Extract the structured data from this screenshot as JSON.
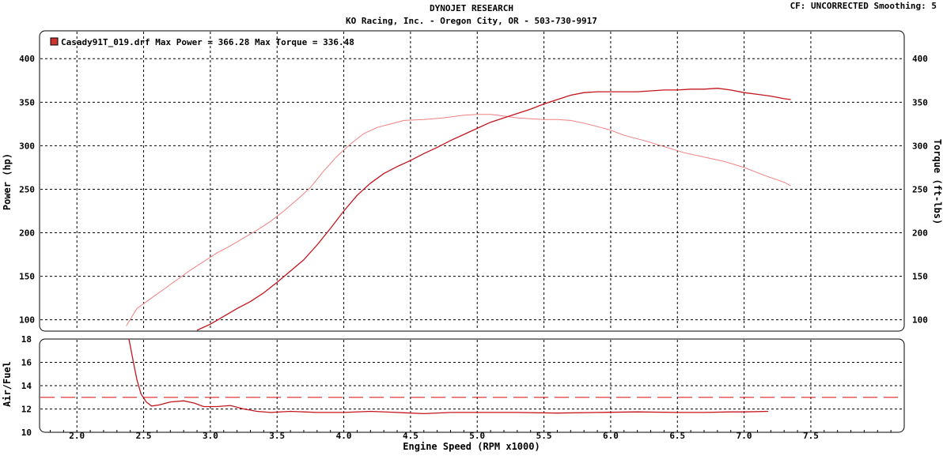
{
  "header": {
    "title": "DYNOJET RESEARCH",
    "subtitle": "KO Racing, Inc. - Oregon City, OR - 503-730-9917",
    "correction": "CF: UNCORRECTED  Smoothing: 5"
  },
  "legend": {
    "text": "Casady91T_019.drf Max Power = 366.28    Max Torque = 336.48",
    "swatch_color": "#cc3333"
  },
  "colors": {
    "power": "#c4141c",
    "torque": "#f08080",
    "afr": "#c4141c",
    "afr_target": "#dd2222",
    "grid": "#000000"
  },
  "chart_data": [
    {
      "type": "line",
      "xlabel": "",
      "ylabel": "Power (hp)",
      "y2label": "Torque (ft-lbs)",
      "xlim": [
        1.72,
        8.2
      ],
      "ylim": [
        87,
        432
      ],
      "y2lim": [
        87,
        432
      ],
      "xticks": [
        2.0,
        2.5,
        3.0,
        3.5,
        4.0,
        4.5,
        5.0,
        5.5,
        6.0,
        6.5,
        7.0,
        7.5
      ],
      "yticks": [
        100,
        150,
        200,
        250,
        300,
        350,
        400
      ],
      "y2ticks": [
        100,
        150,
        200,
        250,
        300,
        350,
        400
      ],
      "grid": true,
      "legend": "top-left",
      "series": [
        {
          "name": "Power",
          "axis": "left",
          "x": [
            2.9,
            3.0,
            3.1,
            3.2,
            3.3,
            3.4,
            3.5,
            3.6,
            3.7,
            3.8,
            3.9,
            4.0,
            4.1,
            4.2,
            4.3,
            4.4,
            4.5,
            4.6,
            4.7,
            4.8,
            4.9,
            5.0,
            5.1,
            5.2,
            5.3,
            5.4,
            5.5,
            5.6,
            5.7,
            5.8,
            5.9,
            6.0,
            6.1,
            6.2,
            6.3,
            6.4,
            6.5,
            6.6,
            6.7,
            6.8,
            6.9,
            7.0,
            7.1,
            7.2,
            7.3,
            7.35
          ],
          "values": [
            88,
            95,
            104,
            113,
            121,
            131,
            143,
            156,
            169,
            186,
            205,
            225,
            243,
            257,
            268,
            276,
            283,
            291,
            298,
            306,
            313,
            320,
            327,
            332,
            337,
            342,
            348,
            353,
            358,
            361,
            362,
            362,
            362,
            362,
            363,
            364,
            364,
            365,
            365,
            366,
            364,
            361,
            359,
            357,
            354,
            353
          ]
        },
        {
          "name": "Torque",
          "axis": "right",
          "x": [
            2.37,
            2.45,
            2.55,
            2.65,
            2.75,
            2.85,
            2.95,
            3.05,
            3.15,
            3.25,
            3.35,
            3.45,
            3.55,
            3.65,
            3.75,
            3.85,
            3.95,
            4.05,
            4.15,
            4.25,
            4.35,
            4.45,
            4.6,
            4.75,
            4.9,
            5.0,
            5.1,
            5.2,
            5.3,
            5.4,
            5.5,
            5.6,
            5.7,
            5.8,
            5.9,
            6.0,
            6.1,
            6.25,
            6.4,
            6.55,
            6.7,
            6.85,
            7.0,
            7.15,
            7.3,
            7.35
          ],
          "values": [
            93,
            113,
            124,
            135,
            146,
            157,
            167,
            177,
            185,
            194,
            203,
            213,
            225,
            238,
            252,
            271,
            288,
            302,
            314,
            321,
            325,
            329,
            330,
            332,
            335,
            336,
            336,
            334,
            332,
            331,
            330,
            330,
            329,
            326,
            322,
            318,
            312,
            306,
            299,
            292,
            287,
            282,
            275,
            266,
            258,
            254
          ]
        }
      ]
    },
    {
      "type": "line",
      "xlabel": "Engine Speed (RPM x1000)",
      "ylabel": "Air/Fuel",
      "xlim": [
        1.72,
        8.2
      ],
      "ylim": [
        10,
        18
      ],
      "xticks": [
        2.0,
        2.5,
        3.0,
        3.5,
        4.0,
        4.5,
        5.0,
        5.5,
        6.0,
        6.5,
        7.0,
        7.5
      ],
      "yticks": [
        10,
        12,
        14,
        16,
        18
      ],
      "grid": true,
      "series": [
        {
          "name": "Air/Fuel",
          "x": [
            2.39,
            2.42,
            2.45,
            2.48,
            2.52,
            2.56,
            2.62,
            2.7,
            2.8,
            2.88,
            2.95,
            3.05,
            3.15,
            3.25,
            3.35,
            3.45,
            3.6,
            3.8,
            4.0,
            4.2,
            4.4,
            4.6,
            4.8,
            5.0,
            5.3,
            5.6,
            5.9,
            6.2,
            6.5,
            6.7,
            6.9,
            7.0,
            7.18
          ],
          "values": [
            18.0,
            16.2,
            14.5,
            13.3,
            12.6,
            12.25,
            12.35,
            12.6,
            12.7,
            12.5,
            12.2,
            12.2,
            12.3,
            12.0,
            11.8,
            11.7,
            11.8,
            11.7,
            11.7,
            11.8,
            11.7,
            11.6,
            11.7,
            11.7,
            11.7,
            11.65,
            11.7,
            11.75,
            11.7,
            11.7,
            11.75,
            11.75,
            11.8
          ]
        },
        {
          "name": "Target",
          "style": "dashed",
          "x": [
            1.72,
            8.2
          ],
          "values": [
            13.0,
            13.0
          ]
        }
      ]
    }
  ]
}
